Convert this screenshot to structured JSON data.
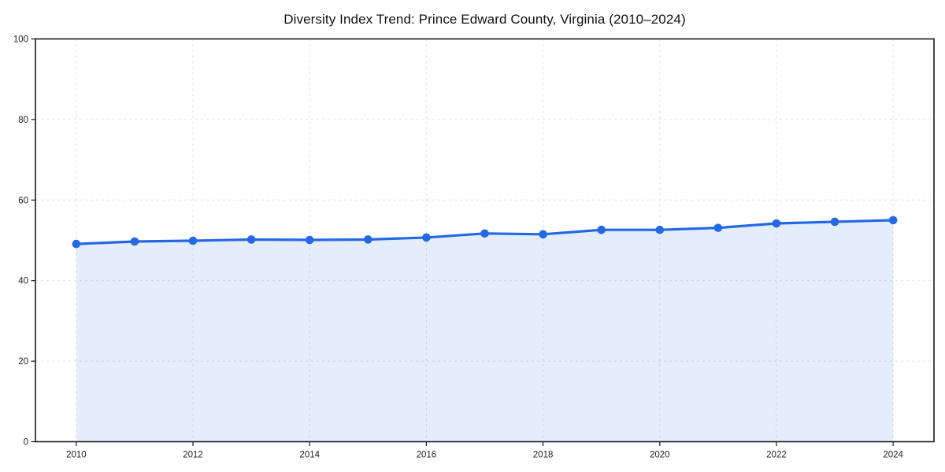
{
  "chart_data": {
    "type": "area",
    "title": "Diversity Index Trend: Prince Edward County, Virginia (2010–2024)",
    "series": [
      {
        "name": "Diversity Index",
        "x": [
          2010,
          2011,
          2012,
          2013,
          2014,
          2015,
          2016,
          2017,
          2018,
          2019,
          2020,
          2021,
          2022,
          2023,
          2024
        ],
        "values": [
          49.1,
          49.7,
          49.9,
          50.2,
          50.1,
          50.2,
          50.7,
          51.7,
          51.5,
          52.6,
          52.6,
          53.1,
          54.2,
          54.6,
          55.0
        ]
      }
    ],
    "xlabel": "",
    "ylabel": "",
    "xlim": [
      2009.3,
      2024.7
    ],
    "ylim": [
      0,
      100
    ],
    "xticks": [
      2010,
      2012,
      2014,
      2016,
      2018,
      2020,
      2022,
      2024
    ],
    "yticks": [
      0,
      20,
      40,
      60,
      80,
      100
    ],
    "grid": true,
    "grid_style": "dashed",
    "legend": "none",
    "marker": "circle",
    "colors": {
      "line": "#2568e4",
      "marker": "#2568e4",
      "fill": "rgba(37, 104, 228, 0.12)",
      "grid": "#e1e1e1",
      "axis": "#1a1a1a",
      "tick_label": "#222222",
      "title": "#111111",
      "background": "#ffffff"
    }
  }
}
